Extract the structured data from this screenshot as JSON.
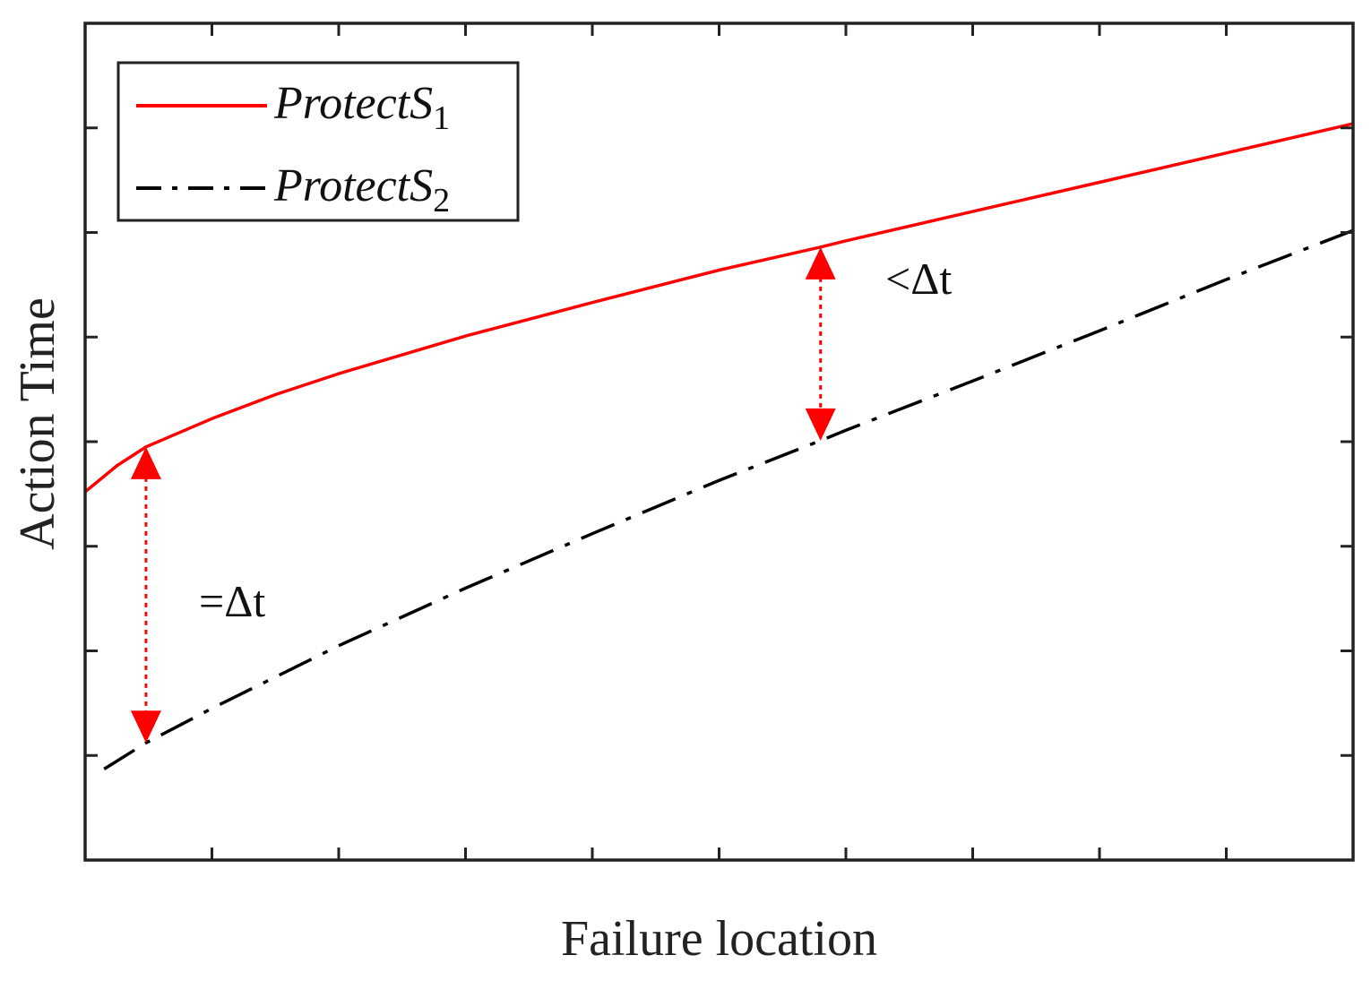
{
  "chart_data": {
    "type": "line",
    "title": "",
    "xlabel": "Failure location",
    "ylabel": "Action Time",
    "xlim": [
      0,
      10
    ],
    "ylim": [
      0,
      8
    ],
    "xticks": [
      1,
      2,
      3,
      4,
      5,
      6,
      7,
      8,
      9
    ],
    "yticks": [
      1,
      2,
      3,
      4,
      5,
      6,
      7
    ],
    "tick_labels_shown": false,
    "grid": false,
    "legend_position": "top-left",
    "series": [
      {
        "name_base": "Protect",
        "name_var": "S",
        "name_sub": "1",
        "color": "#ff0000",
        "style": "solid",
        "x": [
          0.0,
          0.25,
          0.48,
          1.0,
          1.5,
          2.0,
          3.0,
          4.0,
          5.0,
          5.8,
          6.0,
          7.0,
          8.0,
          9.0,
          10.0
        ],
        "y": [
          3.52,
          3.77,
          3.95,
          4.22,
          4.45,
          4.65,
          5.01,
          5.33,
          5.64,
          5.86,
          5.92,
          6.2,
          6.48,
          6.76,
          7.04
        ]
      },
      {
        "name_base": "Protect",
        "name_var": "S",
        "name_sub": "2",
        "color": "#000000",
        "style": "dash-dot",
        "x": [
          0.15,
          0.48,
          1.0,
          2.0,
          3.0,
          4.0,
          5.0,
          5.8,
          6.0,
          7.0,
          8.0,
          9.0,
          10.0
        ],
        "y": [
          0.87,
          1.12,
          1.45,
          2.05,
          2.6,
          3.12,
          3.63,
          4.01,
          4.11,
          4.58,
          5.06,
          5.55,
          6.02
        ]
      }
    ],
    "annotations": [
      {
        "label": "=Δt",
        "x": 0.48,
        "y_from": 3.95,
        "y_to": 1.12,
        "color": "#ff0000",
        "style": "dotted-double-arrow"
      },
      {
        "label": "<Δt",
        "x": 5.8,
        "y_from": 5.86,
        "y_to": 4.01,
        "color": "#ff0000",
        "style": "dotted-double-arrow"
      }
    ]
  }
}
